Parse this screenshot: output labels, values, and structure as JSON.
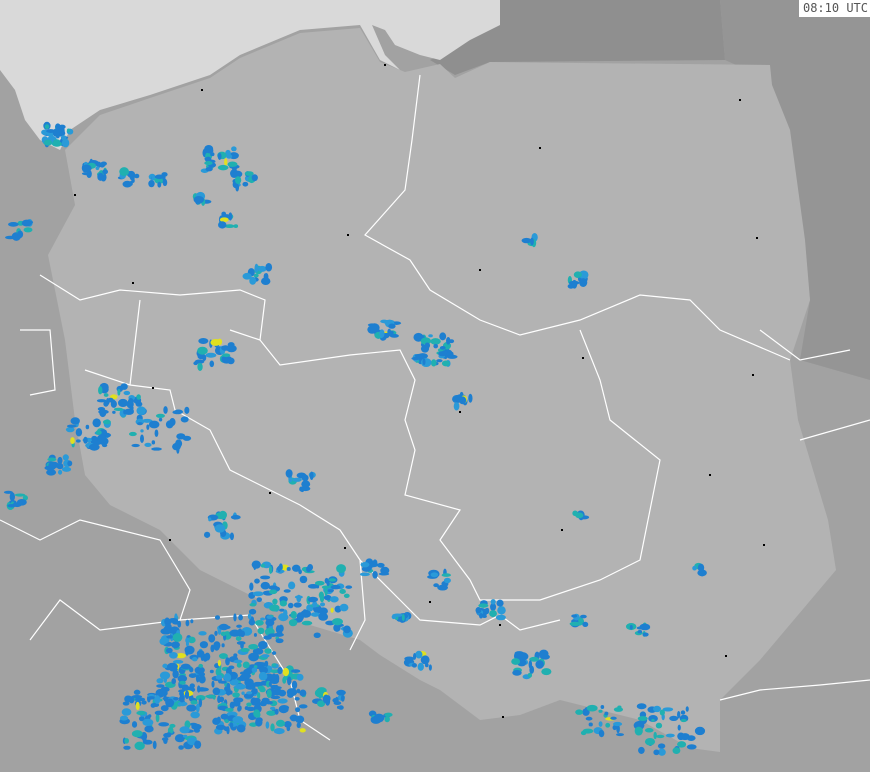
{
  "timestamp": "08:10 UTC",
  "colors": {
    "sea": "#d9d9d9",
    "neighbors": "#a2a2a2",
    "dark_neighbors": "#8f8f8f",
    "poland": "#b3b3b3",
    "borders": "#ffffff",
    "radar_low": "#1e7fd0",
    "radar_mid": "#20b0b0",
    "radar_high": "#e0e020"
  }
}
